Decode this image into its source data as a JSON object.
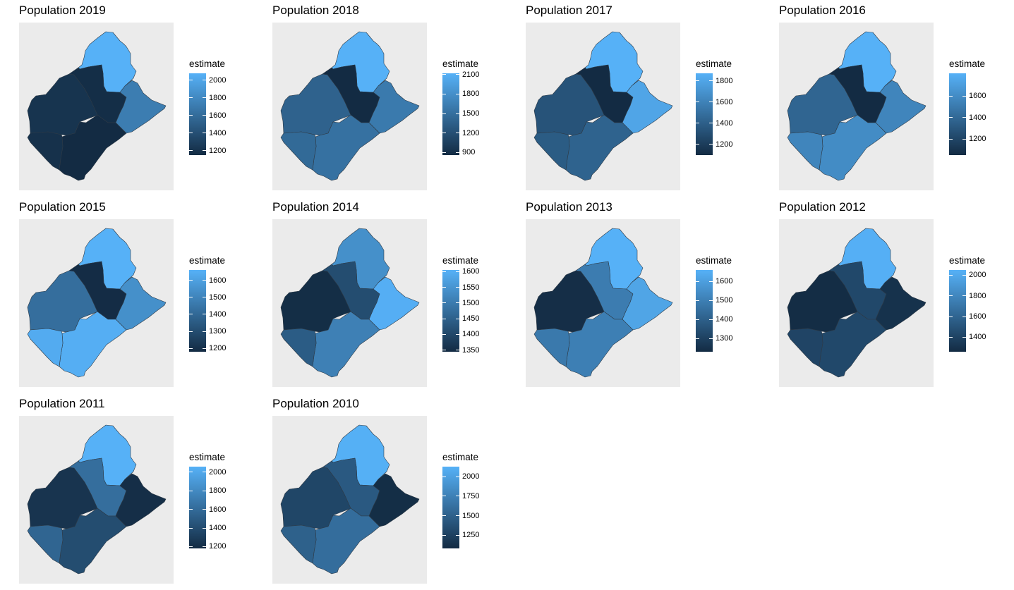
{
  "legend_title": "estimate",
  "colors": {
    "low": "#132b43",
    "high": "#56b1f7",
    "panel_background": "#ebebeb",
    "border": "#2e3a46"
  },
  "regions": [
    "north",
    "west",
    "center",
    "east",
    "south",
    "south-center"
  ],
  "panels": [
    {
      "title": "Population 2019",
      "range": [
        1150,
        2080
      ],
      "ticks": [
        "1200",
        "1400",
        "1600",
        "1800",
        "2000"
      ],
      "values": {
        "north": 2080,
        "west": 1210,
        "center": 1170,
        "east": 1720,
        "south": 1150,
        "south-center": 1190
      }
    },
    {
      "title": "Population 2018",
      "range": [
        860,
        2120
      ],
      "ticks": [
        "900",
        "1200",
        "1500",
        "1800",
        "2100"
      ],
      "values": {
        "north": 2120,
        "west": 1380,
        "center": 860,
        "east": 1600,
        "south": 1520,
        "south-center": 1450
      }
    },
    {
      "title": "Population 2017",
      "range": [
        1100,
        1870
      ],
      "ticks": [
        "1200",
        "1400",
        "1600",
        "1800"
      ],
      "values": {
        "north": 1870,
        "west": 1330,
        "center": 1100,
        "east": 1800,
        "south": 1420,
        "south-center": 1380
      }
    },
    {
      "title": "Population 2016",
      "range": [
        1050,
        1810
      ],
      "ticks": [
        "1200",
        "1400",
        "1600"
      ],
      "values": {
        "north": 1810,
        "west": 1380,
        "center": 1050,
        "east": 1560,
        "south": 1600,
        "south-center": 1560
      }
    },
    {
      "title": "Population 2015",
      "range": [
        1180,
        1660
      ],
      "ticks": [
        "1200",
        "1300",
        "1400",
        "1500",
        "1600"
      ],
      "values": {
        "north": 1660,
        "west": 1420,
        "center": 1185,
        "east": 1540,
        "south": 1650,
        "south-center": 1640
      }
    },
    {
      "title": "Population 2014",
      "range": [
        1345,
        1605
      ],
      "ticks": [
        "1350",
        "1400",
        "1450",
        "1500",
        "1550",
        "1600"
      ],
      "values": {
        "north": 1540,
        "west": 1350,
        "center": 1410,
        "east": 1600,
        "south": 1510,
        "south-center": 1440
      }
    },
    {
      "title": "Population 2013",
      "range": [
        1230,
        1660
      ],
      "ticks": [
        "1300",
        "1400",
        "1500",
        "1600"
      ],
      "values": {
        "north": 1660,
        "west": 1240,
        "center": 1490,
        "east": 1620,
        "south": 1500,
        "south-center": 1480
      }
    },
    {
      "title": "Population 2012",
      "range": [
        1260,
        2050
      ],
      "ticks": [
        "1400",
        "1600",
        "1800",
        "2000"
      ],
      "values": {
        "north": 2040,
        "west": 1270,
        "center": 1430,
        "east": 1300,
        "south": 1430,
        "south-center": 1410
      }
    },
    {
      "title": "Population 2011",
      "range": [
        1180,
        2060
      ],
      "ticks": [
        "1200",
        "1400",
        "1600",
        "1800",
        "2000"
      ],
      "values": {
        "north": 2060,
        "west": 1240,
        "center": 1620,
        "east": 1200,
        "south": 1400,
        "south-center": 1560
      }
    },
    {
      "title": "Population 2010",
      "range": [
        1080,
        2130
      ],
      "ticks": [
        "1250",
        "1500",
        "1750",
        "2000"
      ],
      "values": {
        "north": 2120,
        "west": 1290,
        "center": 1440,
        "east": 1100,
        "south": 1600,
        "south-center": 1500
      }
    }
  ]
}
